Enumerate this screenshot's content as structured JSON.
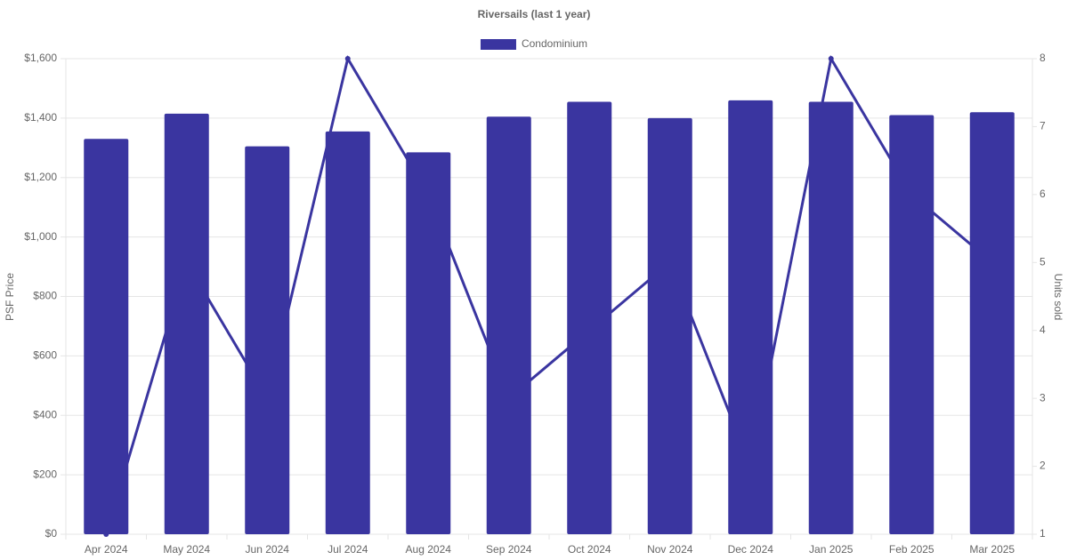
{
  "chart_data": {
    "type": "bar_line",
    "title": "Riversails (last 1 year)",
    "categories": [
      "Apr 2024",
      "May 2024",
      "Jun 2024",
      "Jul 2024",
      "Aug 2024",
      "Sep 2024",
      "Oct 2024",
      "Nov 2024",
      "Dec 2024",
      "Jan 2025",
      "Feb 2025",
      "Mar 2025"
    ],
    "series": [
      {
        "name": "Condominium",
        "type": "bar",
        "color": "#3a35a0",
        "values": [
          1330,
          1415,
          1305,
          1355,
          1285,
          1405,
          1455,
          1400,
          1460,
          1455,
          1410,
          1420
        ]
      },
      {
        "type": "line",
        "axis": "y2",
        "color": "#3a35a0",
        "values": [
          1,
          5,
          3,
          8,
          6,
          3,
          4,
          5,
          2,
          8,
          6,
          5
        ]
      }
    ],
    "ylabel": "PSF Price",
    "y2label": "Units sold",
    "ylim": [
      0,
      1600
    ],
    "yticks": [
      {
        "value": 0,
        "label": "$0"
      },
      {
        "value": 200,
        "label": "$200"
      },
      {
        "value": 400,
        "label": "$400"
      },
      {
        "value": 600,
        "label": "$600"
      },
      {
        "value": 800,
        "label": "$800"
      },
      {
        "value": 1000,
        "label": "$1,000"
      },
      {
        "value": 1200,
        "label": "$1,200"
      },
      {
        "value": 1400,
        "label": "$1,400"
      },
      {
        "value": 1600,
        "label": "$1,600"
      }
    ],
    "y2lim": [
      1,
      8
    ],
    "y2ticks": [
      1,
      2,
      3,
      4,
      5,
      6,
      7,
      8
    ],
    "grid": true,
    "legend": "top"
  }
}
